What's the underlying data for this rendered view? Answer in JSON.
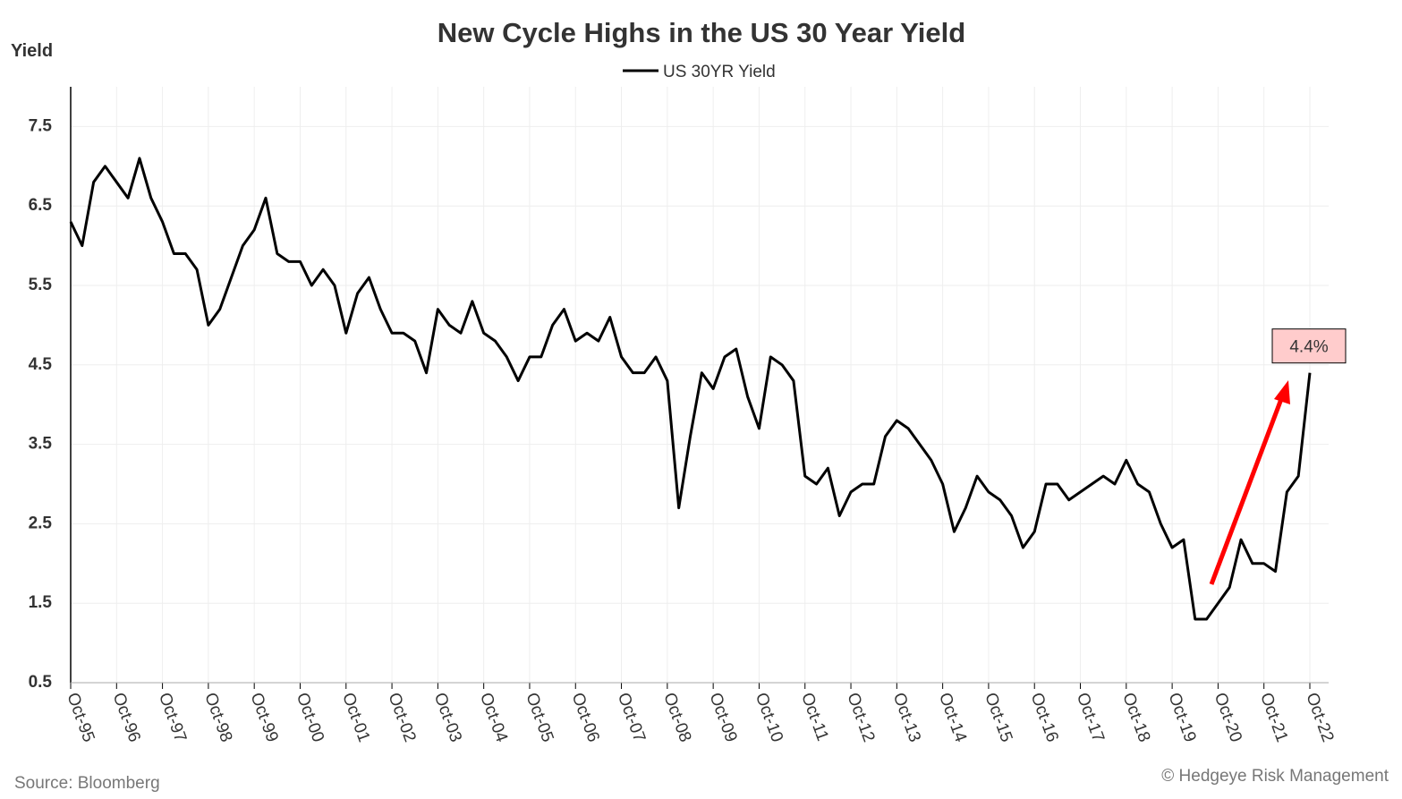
{
  "chart_data": {
    "type": "line",
    "title": "New Cycle Highs in the US 30 Year Yield",
    "y_label": "Yield",
    "source": "Source: Bloomberg",
    "credit": "© Hedgeye Risk Management",
    "annotation": {
      "value": 4.4,
      "label": "4.4%"
    },
    "ylim": [
      0.5,
      8.0
    ],
    "yticks": [
      0.5,
      1.5,
      2.5,
      3.5,
      4.5,
      5.5,
      6.5,
      7.5
    ],
    "xticks": [
      "Oct-95",
      "Oct-96",
      "Oct-97",
      "Oct-98",
      "Oct-99",
      "Oct-00",
      "Oct-01",
      "Oct-02",
      "Oct-03",
      "Oct-04",
      "Oct-05",
      "Oct-06",
      "Oct-07",
      "Oct-08",
      "Oct-09",
      "Oct-10",
      "Oct-11",
      "Oct-12",
      "Oct-13",
      "Oct-14",
      "Oct-15",
      "Oct-16",
      "Oct-17",
      "Oct-18",
      "Oct-19",
      "Oct-20",
      "Oct-21",
      "Oct-22"
    ],
    "grid": true,
    "x": [
      "Oct-95",
      "Jan-96",
      "Apr-96",
      "Jul-96",
      "Oct-96",
      "Jan-97",
      "Apr-97",
      "Jul-97",
      "Oct-97",
      "Jan-98",
      "Apr-98",
      "Jul-98",
      "Oct-98",
      "Jan-99",
      "Apr-99",
      "Jul-99",
      "Oct-99",
      "Jan-00",
      "Apr-00",
      "Jul-00",
      "Oct-00",
      "Jan-01",
      "Apr-01",
      "Jul-01",
      "Oct-01",
      "Jan-02",
      "Apr-02",
      "Jul-02",
      "Oct-02",
      "Jan-03",
      "Apr-03",
      "Jul-03",
      "Oct-03",
      "Jan-04",
      "Apr-04",
      "Jul-04",
      "Oct-04",
      "Jan-05",
      "Apr-05",
      "Jul-05",
      "Oct-05",
      "Jan-06",
      "Apr-06",
      "Jul-06",
      "Oct-06",
      "Jan-07",
      "Apr-07",
      "Jul-07",
      "Oct-07",
      "Jan-08",
      "Apr-08",
      "Jul-08",
      "Oct-08",
      "Jan-09",
      "Apr-09",
      "Jul-09",
      "Oct-09",
      "Jan-10",
      "Apr-10",
      "Jul-10",
      "Oct-10",
      "Jan-11",
      "Apr-11",
      "Jul-11",
      "Oct-11",
      "Jan-12",
      "Apr-12",
      "Jul-12",
      "Oct-12",
      "Jan-13",
      "Apr-13",
      "Jul-13",
      "Oct-13",
      "Jan-14",
      "Apr-14",
      "Jul-14",
      "Oct-14",
      "Jan-15",
      "Apr-15",
      "Jul-15",
      "Oct-15",
      "Jan-16",
      "Apr-16",
      "Jul-16",
      "Oct-16",
      "Jan-17",
      "Apr-17",
      "Jul-17",
      "Oct-17",
      "Jan-18",
      "Apr-18",
      "Jul-18",
      "Oct-18",
      "Jan-19",
      "Apr-19",
      "Jul-19",
      "Oct-19",
      "Jan-20",
      "Apr-20",
      "Jul-20",
      "Oct-20",
      "Jan-21",
      "Apr-21",
      "Jul-21",
      "Oct-21",
      "Jan-22",
      "Apr-22",
      "Jul-22",
      "Oct-22"
    ],
    "series": [
      {
        "name": "US 30YR Yield",
        "color": "#000000",
        "values": [
          6.3,
          6.0,
          6.8,
          7.0,
          6.8,
          6.6,
          7.1,
          6.6,
          6.3,
          5.9,
          5.9,
          5.7,
          5.0,
          5.2,
          5.6,
          6.0,
          6.2,
          6.6,
          5.9,
          5.8,
          5.8,
          5.5,
          5.7,
          5.5,
          4.9,
          5.4,
          5.6,
          5.2,
          4.9,
          4.9,
          4.8,
          4.4,
          5.2,
          5.0,
          4.9,
          5.3,
          4.9,
          4.8,
          4.6,
          4.3,
          4.6,
          4.6,
          5.0,
          5.2,
          4.8,
          4.9,
          4.8,
          5.1,
          4.6,
          4.4,
          4.4,
          4.6,
          4.3,
          2.7,
          3.6,
          4.4,
          4.2,
          4.6,
          4.7,
          4.1,
          3.7,
          4.6,
          4.5,
          4.3,
          3.1,
          3.0,
          3.2,
          2.6,
          2.9,
          3.0,
          3.0,
          3.6,
          3.8,
          3.7,
          3.5,
          3.3,
          3.0,
          2.4,
          2.7,
          3.1,
          2.9,
          2.8,
          2.6,
          2.2,
          2.4,
          3.0,
          3.0,
          2.8,
          2.9,
          3.0,
          3.1,
          3.0,
          3.3,
          3.0,
          2.9,
          2.5,
          2.2,
          2.3,
          1.3,
          1.3,
          1.5,
          1.7,
          2.3,
          2.0,
          2.0,
          1.9,
          2.9,
          3.1,
          4.4
        ]
      }
    ]
  }
}
